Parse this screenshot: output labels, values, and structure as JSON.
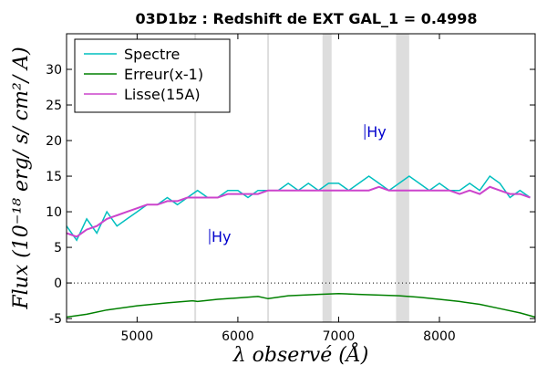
{
  "chart_data": {
    "type": "line",
    "title": "03D1bz : Redshift de EXT GAL_1 = 0.4998",
    "xlabel": "λ observé (Å)",
    "ylabel": "Flux (10⁻¹⁸ erg/ s/ cm²/ A)",
    "xlim": [
      4300,
      8950
    ],
    "ylim": [
      -5.5,
      35
    ],
    "xticks": [
      5000,
      6000,
      7000,
      8000
    ],
    "yticks": [
      -5,
      0,
      5,
      10,
      15,
      20,
      25,
      30
    ],
    "grid": false,
    "legend_position": "top-left",
    "zero_line": true,
    "masked_bands": [
      [
        6840,
        6930
      ],
      [
        7570,
        7700
      ]
    ],
    "sky_lines": [
      5577,
      6300
    ],
    "series": [
      {
        "name": "Spectre",
        "color": "#00bfbf",
        "x": [
          4300,
          4400,
          4500,
          4600,
          4700,
          4800,
          4900,
          5000,
          5100,
          5200,
          5300,
          5400,
          5500,
          5600,
          5700,
          5800,
          5900,
          6000,
          6100,
          6200,
          6300,
          6400,
          6500,
          6600,
          6700,
          6800,
          6900,
          7000,
          7100,
          7200,
          7300,
          7400,
          7500,
          7600,
          7700,
          7800,
          7900,
          8000,
          8100,
          8200,
          8300,
          8400,
          8500,
          8600,
          8700,
          8800,
          8900
        ],
        "y": [
          8,
          6,
          9,
          7,
          10,
          8,
          9,
          10,
          11,
          11,
          12,
          11,
          12,
          13,
          12,
          12,
          13,
          13,
          12,
          13,
          13,
          13,
          14,
          13,
          14,
          13,
          14,
          14,
          13,
          14,
          15,
          14,
          13,
          14,
          15,
          14,
          13,
          14,
          13,
          13,
          14,
          13,
          15,
          14,
          12,
          13,
          12
        ]
      },
      {
        "name": "Erreur(x-1)",
        "color": "#008000",
        "x": [
          4300,
          4500,
          4700,
          5000,
          5300,
          5550,
          5600,
          5800,
          6000,
          6200,
          6300,
          6500,
          6800,
          7000,
          7200,
          7400,
          7600,
          7800,
          8000,
          8200,
          8400,
          8600,
          8800,
          8950
        ],
        "y": [
          -4.8,
          -4.4,
          -3.8,
          -3.2,
          -2.8,
          -2.5,
          -2.6,
          -2.3,
          -2.1,
          -1.9,
          -2.2,
          -1.8,
          -1.6,
          -1.5,
          -1.6,
          -1.7,
          -1.8,
          -2.0,
          -2.3,
          -2.6,
          -3.0,
          -3.6,
          -4.2,
          -4.8
        ]
      },
      {
        "name": "Lisse(15A)",
        "color": "#cc44cc",
        "x": [
          4300,
          4400,
          4500,
          4600,
          4700,
          4800,
          4900,
          5000,
          5100,
          5200,
          5300,
          5400,
          5500,
          5600,
          5700,
          5800,
          5900,
          6000,
          6100,
          6200,
          6300,
          6400,
          6500,
          6600,
          6700,
          6800,
          6900,
          7000,
          7100,
          7200,
          7300,
          7400,
          7500,
          7600,
          7700,
          7800,
          7900,
          8000,
          8100,
          8200,
          8300,
          8400,
          8500,
          8600,
          8700,
          8800,
          8900
        ],
        "y": [
          7,
          6.5,
          7.5,
          8,
          9,
          9.5,
          10,
          10.5,
          11,
          11,
          11.5,
          11.5,
          12,
          12,
          12,
          12,
          12.5,
          12.5,
          12.5,
          12.5,
          13,
          13,
          13,
          13,
          13,
          13,
          13,
          13,
          13,
          13,
          13,
          13.5,
          13,
          13,
          13,
          13,
          13,
          13,
          13,
          12.5,
          13,
          12.5,
          13.5,
          13,
          12.5,
          12.5,
          12
        ]
      }
    ],
    "annotations": [
      {
        "label": "Hy",
        "x": 5720,
        "y": 5.8
      },
      {
        "label": "Hy",
        "x": 7260,
        "y": 20.5
      }
    ]
  }
}
